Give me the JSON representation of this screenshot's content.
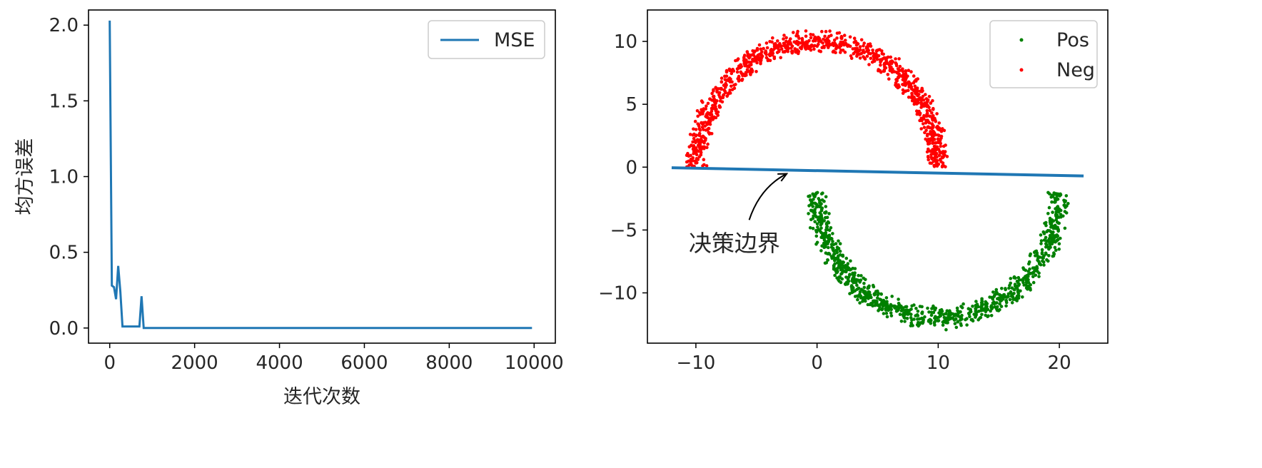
{
  "chart_data": [
    {
      "type": "line",
      "title": "",
      "xlabel": "迭代次数",
      "ylabel": "均方误差",
      "xlim": [
        -500,
        10500
      ],
      "ylim": [
        -0.1,
        2.1
      ],
      "xticks": [
        0,
        2000,
        4000,
        6000,
        8000,
        10000
      ],
      "yticks": [
        0.0,
        0.5,
        1.0,
        1.5,
        2.0
      ],
      "grid": false,
      "legend": {
        "position": "top-right",
        "entries": [
          "MSE"
        ]
      },
      "series": [
        {
          "name": "MSE",
          "color": "#1f77b4",
          "x": [
            0,
            50,
            100,
            150,
            200,
            250,
            300,
            400,
            500,
            600,
            700,
            750,
            800,
            850,
            900,
            1000,
            2000,
            4000,
            6000,
            8000,
            9950
          ],
          "y": [
            2.03,
            0.28,
            0.27,
            0.19,
            0.41,
            0.24,
            0.01,
            0.01,
            0.01,
            0.01,
            0.01,
            0.21,
            0.0,
            0.0,
            0.0,
            0.0,
            0.0,
            0.0,
            0.0,
            0.0,
            0.0
          ]
        }
      ]
    },
    {
      "type": "scatter",
      "title": "",
      "xlabel": "",
      "ylabel": "",
      "xlim": [
        -14,
        24
      ],
      "ylim": [
        -14,
        12.5
      ],
      "xticks": [
        -10,
        0,
        10,
        20
      ],
      "yticks": [
        -10,
        -5,
        0,
        5,
        10
      ],
      "grid": false,
      "legend": {
        "position": "top-right",
        "entries": [
          "Pos",
          "Neg"
        ]
      },
      "series": [
        {
          "name": "Pos",
          "color": "#008000",
          "shape": "half-moon-lower",
          "center": [
            10,
            -2
          ],
          "radius": 10,
          "width": 2,
          "n": 1000
        },
        {
          "name": "Neg",
          "color": "#ff0000",
          "shape": "half-moon-upper",
          "center": [
            0,
            0
          ],
          "radius": 10,
          "width": 2,
          "n": 1000
        }
      ],
      "boundary": {
        "color": "#1f77b4",
        "x": [
          -12,
          22
        ],
        "y": [
          -0.05,
          -0.7
        ]
      },
      "annotation": {
        "text": "决策边界",
        "point": [
          -2.5,
          -0.3
        ],
        "text_at": [
          -10,
          -6
        ]
      }
    }
  ]
}
